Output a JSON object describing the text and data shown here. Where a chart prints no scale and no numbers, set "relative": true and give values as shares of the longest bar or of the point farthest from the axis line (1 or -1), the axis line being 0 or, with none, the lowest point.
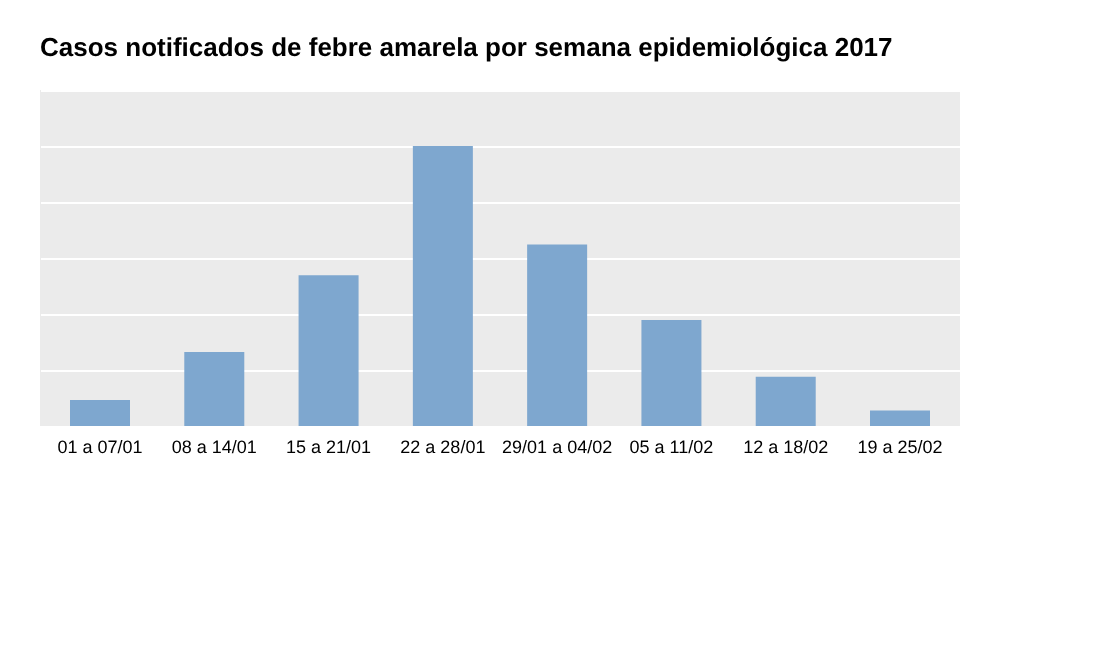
{
  "chart_data": {
    "type": "bar",
    "title": "Casos notificados de febre amarela por semana epidemiológica 2017",
    "categories": [
      "01 a 07/01",
      "08 a 14/01",
      "15 a 21/01",
      "22 a 28/01",
      "29/01 a 04/02",
      "05 a 11/02",
      "12 a 18/02",
      "19 a 25/02"
    ],
    "values": [
      0.093,
      0.264,
      0.538,
      1,
      0.648,
      0.379,
      0.176,
      0.055
    ],
    "color": "#7ea7cf",
    "relative": true,
    "grid": "y"
  }
}
